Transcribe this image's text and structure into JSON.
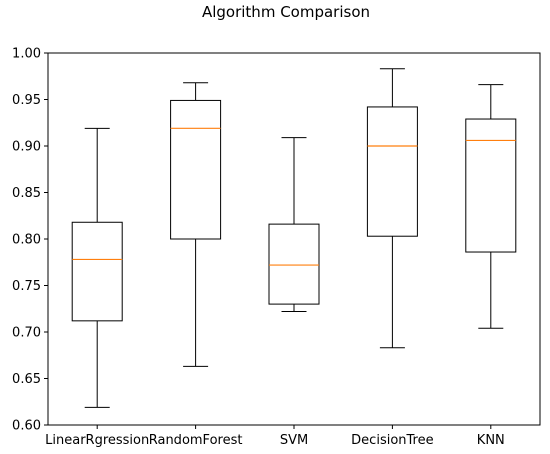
{
  "chart_data": {
    "type": "box",
    "title": "Algorithm Comparison",
    "xlabel": "",
    "ylabel": "",
    "ylim": [
      0.6,
      1.0
    ],
    "yticks": [
      "0.60",
      "0.65",
      "0.70",
      "0.75",
      "0.80",
      "0.85",
      "0.90",
      "0.95",
      "1.00"
    ],
    "grid": false,
    "categories": [
      "LinearRgression",
      "RandomForest",
      "SVM",
      "DecisionTree",
      "KNN"
    ],
    "boxes": [
      {
        "whisker_low": 0.619,
        "q1": 0.712,
        "median": 0.778,
        "q3": 0.818,
        "whisker_high": 0.919
      },
      {
        "whisker_low": 0.663,
        "q1": 0.8,
        "median": 0.919,
        "q3": 0.949,
        "whisker_high": 0.968
      },
      {
        "whisker_low": 0.722,
        "q1": 0.73,
        "median": 0.772,
        "q3": 0.816,
        "whisker_high": 0.909
      },
      {
        "whisker_low": 0.683,
        "q1": 0.803,
        "median": 0.9,
        "q3": 0.942,
        "whisker_high": 0.983
      },
      {
        "whisker_low": 0.704,
        "q1": 0.786,
        "median": 0.906,
        "q3": 0.929,
        "whisker_high": 0.966
      }
    ],
    "colors": {
      "box": "#000000",
      "median": "#ff7f0e"
    }
  }
}
